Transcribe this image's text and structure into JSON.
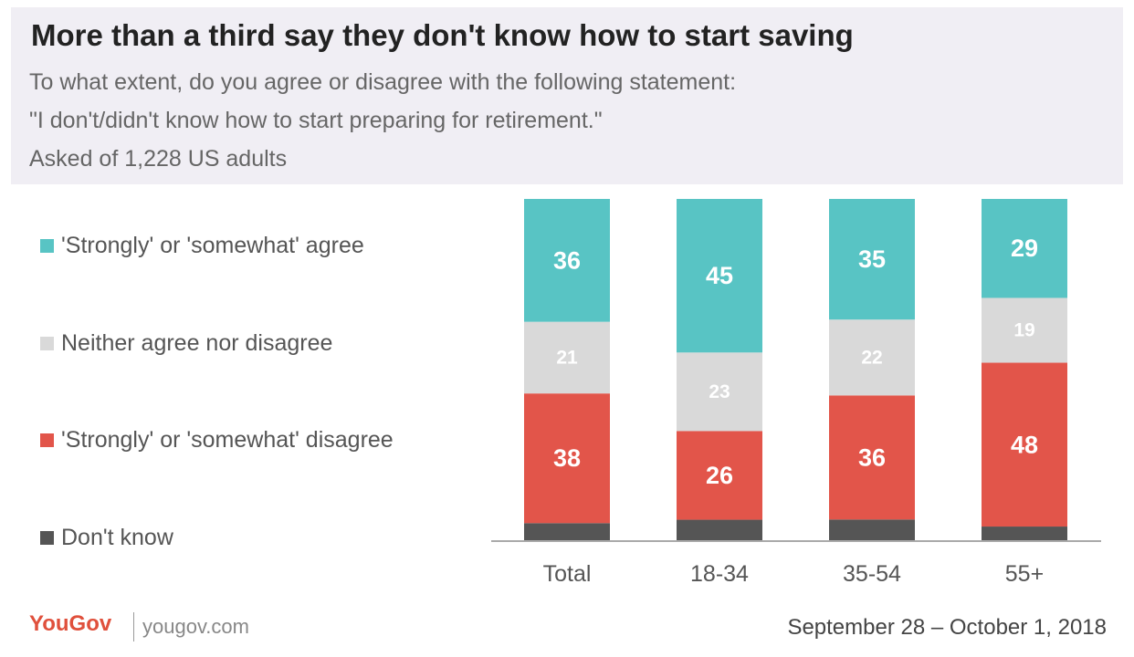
{
  "header": {
    "title": "More than a third say they don't know how to start saving",
    "question": "To what extent, do you agree or disagree with the following statement:",
    "statement": "\"I don't/didn't know how to start preparing for retirement.\"",
    "sample": "Asked of 1,228 US adults"
  },
  "footer": {
    "logo": "YouGov",
    "site": "yougov.com",
    "date": "September 28 – October 1, 2018"
  },
  "chart_data": {
    "type": "bar",
    "stacked": true,
    "categories": [
      "Total",
      "18-34",
      "35-54",
      "55+"
    ],
    "series": [
      {
        "name": "'Strongly' or 'somewhat' agree",
        "color": "#58c4c4",
        "values": [
          36,
          45,
          35,
          29
        ]
      },
      {
        "name": "Neither agree nor disagree",
        "color": "#d9d9d9",
        "values": [
          21,
          23,
          22,
          19
        ]
      },
      {
        "name": "'Strongly' or 'somewhat' disagree",
        "color": "#e2554a",
        "values": [
          38,
          26,
          36,
          48
        ]
      },
      {
        "name": "Don't know",
        "color": "#555555",
        "values": [
          5,
          6,
          6,
          4
        ]
      }
    ],
    "data_labels_shown_for": [
      "'Strongly' or 'somewhat' agree",
      "Neither agree nor disagree",
      "'Strongly' or 'somewhat' disagree"
    ],
    "ylim": [
      0,
      100
    ],
    "legend_position": "left",
    "grid": false
  }
}
